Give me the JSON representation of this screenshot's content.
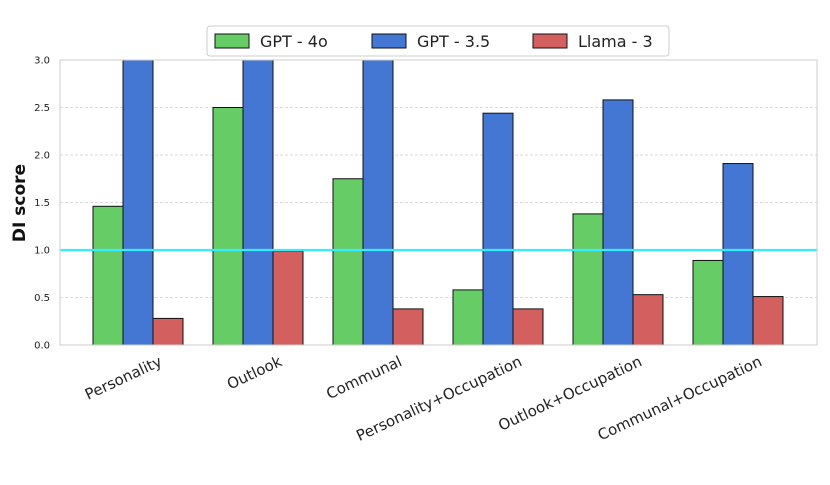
{
  "chart_data": {
    "type": "bar",
    "title": "",
    "xlabel": "",
    "ylabel": "DI score",
    "ylim": [
      0,
      3.0
    ],
    "yticks": [
      "0.0",
      "0.5",
      "1.0",
      "1.5",
      "2.0",
      "2.5",
      "3.0"
    ],
    "grid": "horizontal dashed",
    "legend_position": "top-center",
    "categories": [
      "Personality",
      "Outlook",
      "Communal",
      "Personality+Occupation",
      "Outlook+Occupation",
      "Communal+Occupation"
    ],
    "series": [
      {
        "name": "GPT - 4o",
        "color": "#66cc66",
        "values": [
          1.46,
          2.5,
          1.75,
          0.58,
          1.38,
          0.89
        ]
      },
      {
        "name": "GPT - 3.5",
        "color": "#4477d4",
        "values": [
          3.0,
          3.0,
          3.0,
          2.44,
          2.58,
          1.91
        ]
      },
      {
        "name": "Llama - 3",
        "color": "#d45f5f",
        "values": [
          0.28,
          0.99,
          0.38,
          0.38,
          0.53,
          0.51
        ]
      }
    ],
    "reference_line": {
      "value": 1.0,
      "color": "#33eeff"
    }
  }
}
